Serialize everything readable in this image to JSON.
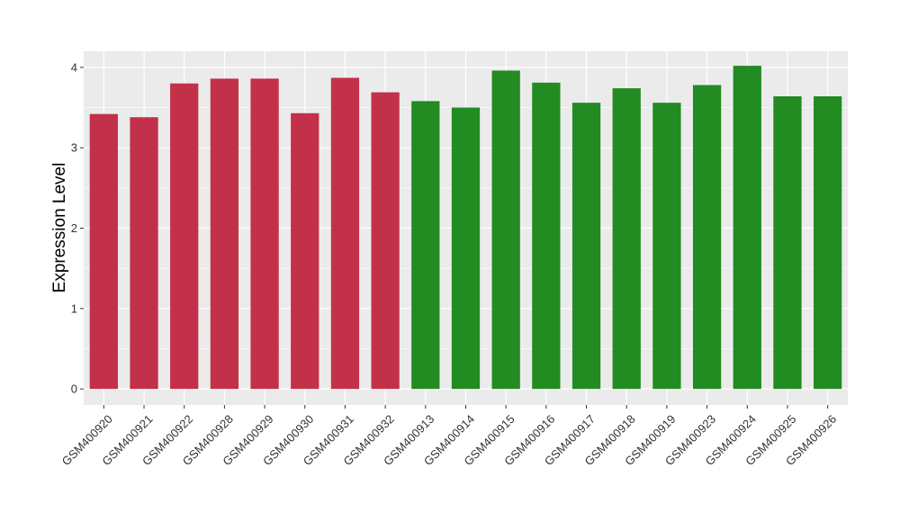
{
  "chart_data": {
    "type": "bar",
    "title": "",
    "xlabel": "",
    "ylabel": "Expression Level",
    "ylim": [
      -0.2,
      4.2
    ],
    "yticks": [
      0,
      1,
      2,
      3,
      4
    ],
    "grid": true,
    "legend": "none",
    "categories": [
      "GSM400920",
      "GSM400921",
      "GSM400922",
      "GSM400928",
      "GSM400929",
      "GSM400930",
      "GSM400931",
      "GSM400932",
      "GSM400913",
      "GSM400914",
      "GSM400915",
      "GSM400916",
      "GSM400917",
      "GSM400918",
      "GSM400919",
      "GSM400923",
      "GSM400924",
      "GSM400925",
      "GSM400926"
    ],
    "values": [
      3.42,
      3.38,
      3.8,
      3.86,
      3.86,
      3.43,
      3.87,
      3.69,
      3.58,
      3.5,
      3.96,
      3.81,
      3.56,
      3.74,
      3.56,
      3.78,
      4.02,
      3.64,
      3.64
    ],
    "colors": [
      "#C3304A",
      "#C3304A",
      "#C3304A",
      "#C3304A",
      "#C3304A",
      "#C3304A",
      "#C3304A",
      "#C3304A",
      "#228B22",
      "#228B22",
      "#228B22",
      "#228B22",
      "#228B22",
      "#228B22",
      "#228B22",
      "#228B22",
      "#228B22",
      "#228B22",
      "#228B22"
    ],
    "panel_background": "#EBEBEB",
    "grid_color": "#FFFFFF"
  }
}
